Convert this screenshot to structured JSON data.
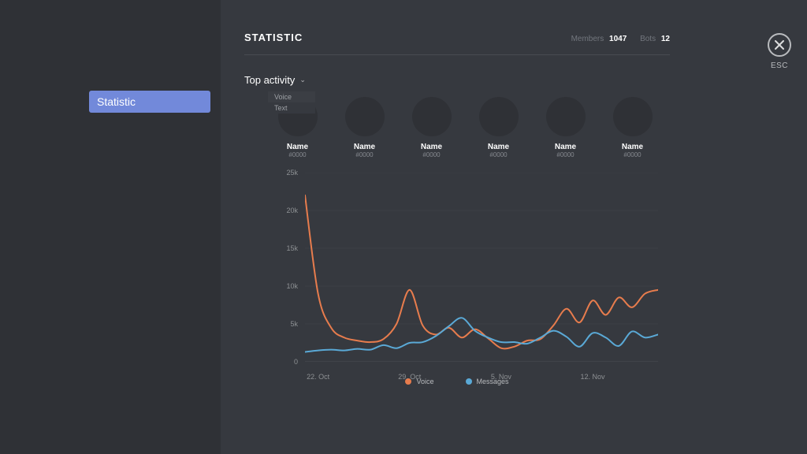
{
  "sidebar": {
    "items": [
      {
        "label": "Statistic"
      }
    ]
  },
  "header": {
    "title": "STATISTIC",
    "members_label": "Members",
    "members_count": "1047",
    "bots_label": "Bots",
    "bots_count": "12"
  },
  "close": {
    "label": "ESC"
  },
  "dropdown": {
    "label": "Top activity",
    "options": [
      "Voice",
      "Text"
    ]
  },
  "avatars": [
    {
      "name": "Name",
      "tag": "#0000"
    },
    {
      "name": "Name",
      "tag": "#0000"
    },
    {
      "name": "Name",
      "tag": "#0000"
    },
    {
      "name": "Name",
      "tag": "#0000"
    },
    {
      "name": "Name",
      "tag": "#0000"
    },
    {
      "name": "Name",
      "tag": "#0000"
    }
  ],
  "chart": {
    "type": "line",
    "ylim": [
      0,
      25000
    ],
    "ytick_step": 5000,
    "ytick_labels": [
      "0",
      "5k",
      "10k",
      "15k",
      "20k",
      "25k"
    ],
    "x_count": 28,
    "xticks": [
      {
        "index": 1,
        "label": "22. Oct"
      },
      {
        "index": 8,
        "label": "29. Oct"
      },
      {
        "index": 15,
        "label": "5. Nov"
      },
      {
        "index": 22,
        "label": "12. Nov"
      }
    ],
    "grid_color": "#3c3f45",
    "axis_color": "#4b4e54",
    "background_color": "#36393f",
    "series": [
      {
        "name": "Voice",
        "color": "#e77c4d",
        "stroke_width": 2,
        "values": [
          22000,
          9000,
          4500,
          3200,
          2800,
          2600,
          3000,
          5000,
          9500,
          4800,
          3600,
          4500,
          3200,
          4300,
          3100,
          1800,
          2000,
          2800,
          3000,
          4800,
          7000,
          5200,
          8100,
          6200,
          8500,
          7200,
          9000,
          9500
        ]
      },
      {
        "name": "Messages",
        "color": "#5aa9d6",
        "stroke_width": 2,
        "values": [
          1300,
          1500,
          1600,
          1500,
          1700,
          1600,
          2200,
          1800,
          2500,
          2600,
          3400,
          4700,
          5800,
          4100,
          3200,
          2600,
          2600,
          2400,
          3200,
          4100,
          3300,
          2000,
          3800,
          3200,
          2100,
          4000,
          3200,
          3600
        ]
      }
    ]
  },
  "legend": [
    {
      "label": "Voice",
      "color": "#e77c4d"
    },
    {
      "label": "Messages",
      "color": "#5aa9d6"
    }
  ]
}
